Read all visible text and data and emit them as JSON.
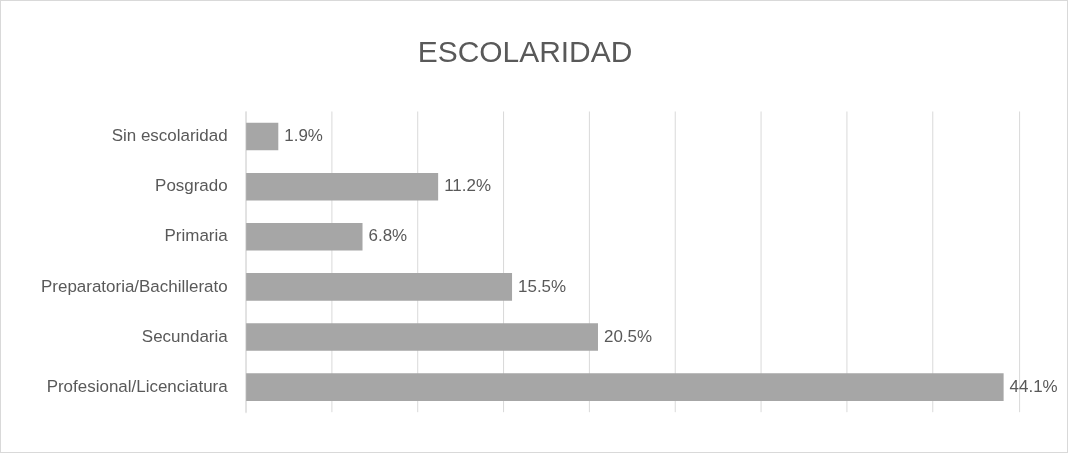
{
  "chart_data": {
    "type": "bar",
    "orientation": "horizontal",
    "title": "ESCOLARIDAD",
    "categories": [
      "Sin escolaridad",
      "Posgrado",
      "Primaria",
      "Preparatoria/Bachillerato",
      "Secundaria",
      "Profesional/Licenciatura"
    ],
    "values": [
      1.9,
      11.2,
      6.8,
      15.5,
      20.5,
      44.1
    ],
    "value_labels": [
      "1.9%",
      "11.2%",
      "6.8%",
      "15.5%",
      "20.5%",
      "44.1%"
    ],
    "color": "#a6a6a6",
    "grid": "x",
    "tick_labels": "y",
    "legend": false
  }
}
